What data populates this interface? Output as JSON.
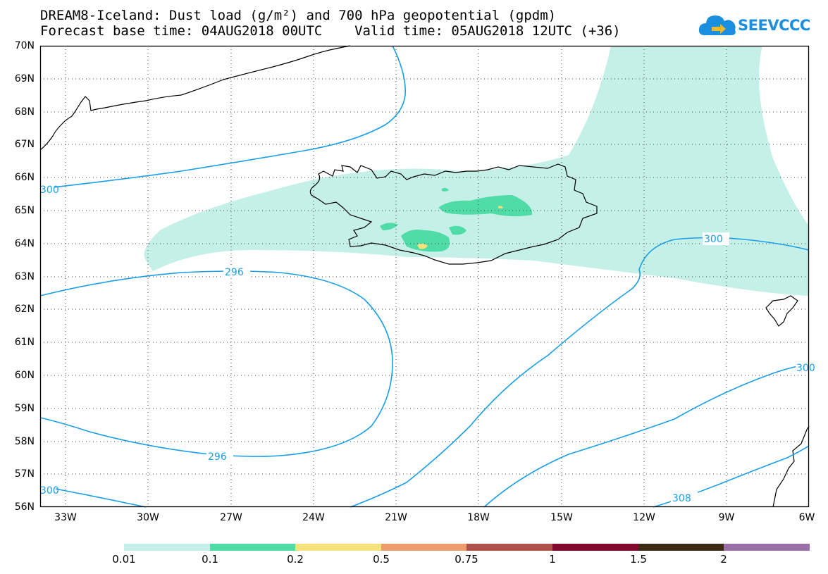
{
  "title": {
    "line1": "DREAM8-Iceland: Dust load (g/m²) and 700 hPa geopotential (gpdm)",
    "line2": "Forecast base time: 04AUG2018 00UTC    Valid time: 05AUG2018 12UTC (+36)"
  },
  "logo": {
    "text": "SEEVCCC",
    "colors": {
      "cloud": "#1a8fe0",
      "arrow": "#f2b630"
    }
  },
  "map": {
    "lat_labels": [
      "70N",
      "69N",
      "68N",
      "67N",
      "66N",
      "65N",
      "64N",
      "63N",
      "62N",
      "61N",
      "60N",
      "59N",
      "58N",
      "57N",
      "56N"
    ],
    "lon_labels": [
      "33W",
      "30W",
      "27W",
      "24W",
      "21W",
      "18W",
      "15W",
      "12W",
      "9W",
      "6W"
    ],
    "contour_labels": [
      "300",
      "296",
      "296",
      "300",
      "308",
      "300",
      "300"
    ],
    "contour_color": "#1a9ee6"
  },
  "colorbar": {
    "colors": [
      "#c4f0e8",
      "#4fdca6",
      "#f5e27a",
      "#ef9c6d",
      "#b0504a",
      "#820a2e",
      "#3d2a14",
      "#9a6ea6"
    ],
    "labels": [
      "0.01",
      "0.1",
      "0.2",
      "0.5",
      "0.75",
      "1",
      "1.5",
      "2"
    ]
  }
}
